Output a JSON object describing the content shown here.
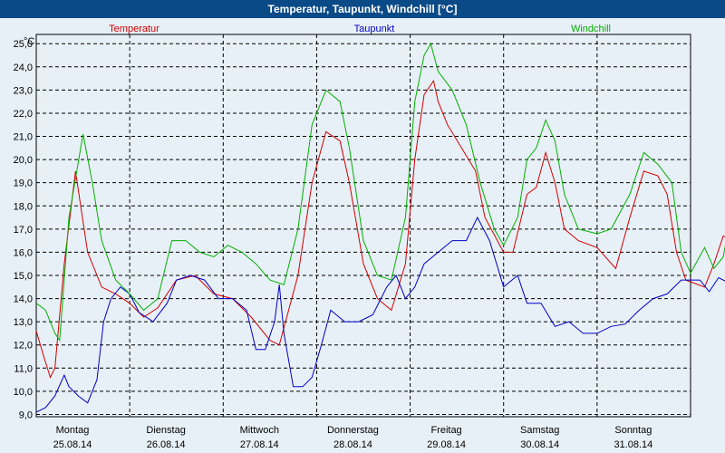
{
  "window": {
    "title": "Temperatur, Taupunkt, Windchill [°C]"
  },
  "colors": {
    "temperatur": "#d00000",
    "taupunkt": "#0000c8",
    "windchill": "#00b000",
    "background": "#e8f0f7",
    "grid": "#000000"
  },
  "chart_data": {
    "type": "line",
    "title": "Temperatur, Taupunkt, Windchill [°C]",
    "ylabel": "°C",
    "ylim": [
      8.9,
      25.4
    ],
    "yticks": [
      "9,0",
      "10,0",
      "11,0",
      "12,0",
      "13,0",
      "14,0",
      "15,0",
      "16,0",
      "17,0",
      "18,0",
      "19,0",
      "20,0",
      "21,0",
      "22,0",
      "23,0",
      "24,0",
      "25,0"
    ],
    "xlim_days": [
      0,
      7
    ],
    "days": [
      {
        "weekday": "Montag",
        "date": "25.08.14"
      },
      {
        "weekday": "Dienstag",
        "date": "26.08.14"
      },
      {
        "weekday": "Mittwoch",
        "date": "27.08.14"
      },
      {
        "weekday": "Donnerstag",
        "date": "28.08.14"
      },
      {
        "weekday": "Freitag",
        "date": "29.08.14"
      },
      {
        "weekday": "Samstag",
        "date": "30.08.14"
      },
      {
        "weekday": "Sonntag",
        "date": "31.08.14"
      }
    ],
    "grid": true,
    "legend": [
      "Temperatur",
      "Taupunkt",
      "Windchill"
    ],
    "series": [
      {
        "name": "Temperatur",
        "points": [
          [
            0.0,
            12.6
          ],
          [
            0.08,
            11.5
          ],
          [
            0.15,
            10.6
          ],
          [
            0.2,
            11.0
          ],
          [
            0.3,
            15.5
          ],
          [
            0.42,
            19.5
          ],
          [
            0.55,
            16.0
          ],
          [
            0.7,
            14.5
          ],
          [
            0.85,
            14.2
          ],
          [
            1.0,
            13.8
          ],
          [
            1.15,
            13.2
          ],
          [
            1.3,
            13.6
          ],
          [
            1.5,
            14.8
          ],
          [
            1.7,
            15.0
          ],
          [
            1.9,
            14.2
          ],
          [
            2.1,
            14.0
          ],
          [
            2.3,
            13.2
          ],
          [
            2.5,
            12.2
          ],
          [
            2.6,
            12.0
          ],
          [
            2.7,
            13.5
          ],
          [
            2.8,
            15.0
          ],
          [
            2.95,
            19.0
          ],
          [
            3.1,
            21.2
          ],
          [
            3.25,
            20.8
          ],
          [
            3.35,
            19.0
          ],
          [
            3.5,
            15.5
          ],
          [
            3.65,
            14.0
          ],
          [
            3.8,
            13.5
          ],
          [
            3.95,
            15.5
          ],
          [
            4.05,
            20.0
          ],
          [
            4.15,
            22.8
          ],
          [
            4.25,
            23.4
          ],
          [
            4.3,
            22.5
          ],
          [
            4.4,
            21.5
          ],
          [
            4.55,
            20.5
          ],
          [
            4.7,
            19.5
          ],
          [
            4.8,
            17.5
          ],
          [
            5.0,
            16.0
          ],
          [
            5.1,
            16.0
          ],
          [
            5.25,
            18.5
          ],
          [
            5.35,
            18.8
          ],
          [
            5.45,
            20.3
          ],
          [
            5.55,
            19.0
          ],
          [
            5.65,
            17.0
          ],
          [
            5.8,
            16.5
          ],
          [
            6.0,
            16.2
          ],
          [
            6.2,
            15.3
          ],
          [
            6.35,
            17.5
          ],
          [
            6.5,
            19.5
          ],
          [
            6.65,
            19.3
          ],
          [
            6.75,
            18.5
          ],
          [
            6.85,
            16.0
          ],
          [
            6.95,
            14.8
          ],
          [
            7.15,
            14.5
          ],
          [
            7.25,
            15.5
          ],
          [
            7.35,
            16.7
          ],
          [
            7.45,
            16.5
          ],
          [
            7.55,
            17.0
          ],
          [
            7.6,
            15.0
          ],
          [
            7.7,
            14.2
          ],
          [
            7.85,
            14.0
          ]
        ]
      },
      {
        "name": "Taupunkt",
        "points": [
          [
            0.0,
            9.1
          ],
          [
            0.1,
            9.3
          ],
          [
            0.2,
            9.8
          ],
          [
            0.3,
            10.7
          ],
          [
            0.35,
            10.2
          ],
          [
            0.45,
            9.8
          ],
          [
            0.55,
            9.5
          ],
          [
            0.65,
            10.5
          ],
          [
            0.72,
            13.0
          ],
          [
            0.8,
            14.0
          ],
          [
            0.9,
            14.5
          ],
          [
            1.0,
            14.2
          ],
          [
            1.1,
            13.4
          ],
          [
            1.25,
            13.0
          ],
          [
            1.4,
            13.8
          ],
          [
            1.5,
            14.8
          ],
          [
            1.65,
            15.0
          ],
          [
            1.8,
            14.8
          ],
          [
            1.95,
            14.0
          ],
          [
            2.1,
            14.0
          ],
          [
            2.25,
            13.5
          ],
          [
            2.35,
            11.8
          ],
          [
            2.45,
            11.8
          ],
          [
            2.55,
            13.0
          ],
          [
            2.6,
            14.6
          ],
          [
            2.65,
            12.5
          ],
          [
            2.75,
            10.2
          ],
          [
            2.85,
            10.2
          ],
          [
            2.95,
            10.6
          ],
          [
            3.05,
            12.0
          ],
          [
            3.15,
            13.5
          ],
          [
            3.3,
            13.0
          ],
          [
            3.45,
            13.0
          ],
          [
            3.6,
            13.3
          ],
          [
            3.75,
            14.5
          ],
          [
            3.85,
            15.0
          ],
          [
            3.95,
            14.0
          ],
          [
            4.05,
            14.5
          ],
          [
            4.15,
            15.5
          ],
          [
            4.3,
            16.0
          ],
          [
            4.45,
            16.5
          ],
          [
            4.6,
            16.5
          ],
          [
            4.72,
            17.5
          ],
          [
            4.85,
            16.5
          ],
          [
            5.0,
            14.5
          ],
          [
            5.15,
            15.0
          ],
          [
            5.25,
            13.8
          ],
          [
            5.4,
            13.8
          ],
          [
            5.55,
            12.8
          ],
          [
            5.7,
            13.0
          ],
          [
            5.85,
            12.5
          ],
          [
            6.0,
            12.5
          ],
          [
            6.15,
            12.8
          ],
          [
            6.3,
            12.9
          ],
          [
            6.45,
            13.5
          ],
          [
            6.6,
            14.0
          ],
          [
            6.75,
            14.2
          ],
          [
            6.9,
            14.8
          ],
          [
            7.0,
            14.8
          ],
          [
            7.1,
            14.8
          ],
          [
            7.2,
            14.3
          ],
          [
            7.3,
            14.9
          ],
          [
            7.4,
            14.7
          ],
          [
            7.5,
            15.4
          ],
          [
            7.6,
            14.8
          ],
          [
            7.7,
            13.8
          ],
          [
            7.85,
            13.5
          ]
        ]
      },
      {
        "name": "Windchill",
        "points": [
          [
            0.0,
            13.8
          ],
          [
            0.1,
            13.5
          ],
          [
            0.2,
            12.5
          ],
          [
            0.25,
            12.2
          ],
          [
            0.35,
            17.5
          ],
          [
            0.5,
            21.1
          ],
          [
            0.6,
            19.0
          ],
          [
            0.7,
            16.5
          ],
          [
            0.85,
            14.8
          ],
          [
            1.0,
            14.2
          ],
          [
            1.15,
            13.5
          ],
          [
            1.3,
            14.0
          ],
          [
            1.45,
            16.5
          ],
          [
            1.6,
            16.5
          ],
          [
            1.75,
            16.0
          ],
          [
            1.9,
            15.8
          ],
          [
            2.05,
            16.3
          ],
          [
            2.2,
            16.0
          ],
          [
            2.35,
            15.5
          ],
          [
            2.5,
            14.8
          ],
          [
            2.65,
            14.6
          ],
          [
            2.8,
            17.0
          ],
          [
            2.95,
            21.5
          ],
          [
            3.1,
            23.0
          ],
          [
            3.25,
            22.5
          ],
          [
            3.35,
            20.5
          ],
          [
            3.5,
            16.5
          ],
          [
            3.65,
            15.0
          ],
          [
            3.8,
            14.8
          ],
          [
            3.95,
            17.5
          ],
          [
            4.05,
            22.5
          ],
          [
            4.15,
            24.5
          ],
          [
            4.22,
            25.0
          ],
          [
            4.3,
            23.8
          ],
          [
            4.45,
            23.0
          ],
          [
            4.6,
            21.5
          ],
          [
            4.75,
            19.0
          ],
          [
            4.9,
            17.0
          ],
          [
            5.0,
            16.3
          ],
          [
            5.15,
            17.5
          ],
          [
            5.25,
            20.0
          ],
          [
            5.35,
            20.5
          ],
          [
            5.45,
            21.7
          ],
          [
            5.55,
            20.8
          ],
          [
            5.65,
            18.5
          ],
          [
            5.8,
            17.0
          ],
          [
            6.0,
            16.8
          ],
          [
            6.15,
            17.0
          ],
          [
            6.35,
            18.5
          ],
          [
            6.5,
            20.3
          ],
          [
            6.65,
            19.8
          ],
          [
            6.8,
            19.0
          ],
          [
            6.9,
            16.0
          ],
          [
            7.0,
            15.1
          ],
          [
            7.15,
            16.2
          ],
          [
            7.25,
            15.3
          ],
          [
            7.35,
            15.8
          ],
          [
            7.45,
            18.0
          ],
          [
            7.55,
            18.8
          ],
          [
            7.65,
            15.5
          ],
          [
            7.8,
            14.8
          ],
          [
            7.85,
            14.7
          ]
        ]
      }
    ]
  }
}
